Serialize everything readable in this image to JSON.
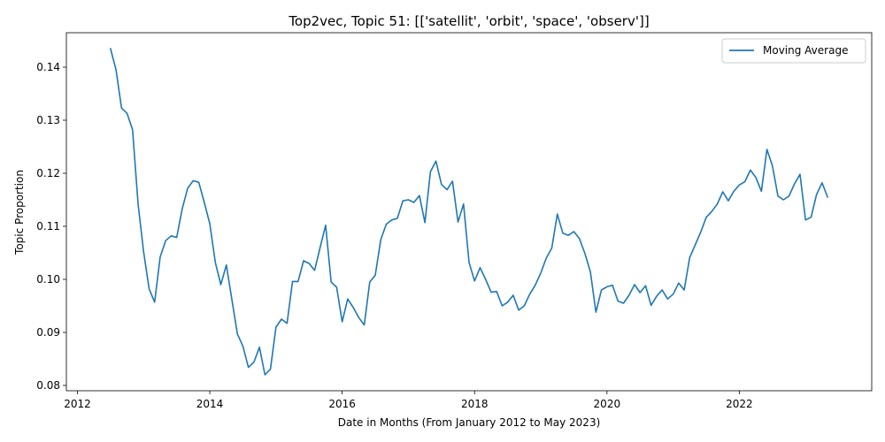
{
  "chart_data": {
    "type": "line",
    "title": "Top2vec, Topic 51: [['satellit', 'orbit', 'space', 'observ']]",
    "xlabel": "Date in Months (From January 2012 to May 2023)",
    "ylabel": "Topic Proportion",
    "xlim": [
      "2011-11",
      "2024-01"
    ],
    "ylim": [
      0.079,
      0.1465
    ],
    "x_ticks": [
      "2012",
      "2014",
      "2016",
      "2018",
      "2020",
      "2022"
    ],
    "y_ticks": [
      "0.08",
      "0.09",
      "0.10",
      "0.11",
      "0.12",
      "0.13",
      "0.14"
    ],
    "grid": false,
    "legend_position": "top-right",
    "line_color": "#1f77b4",
    "series": [
      {
        "name": "Moving Average",
        "x": [
          "2012-07",
          "2012-08",
          "2012-09",
          "2012-10",
          "2012-11",
          "2012-12",
          "2013-01",
          "2013-02",
          "2013-03",
          "2013-04",
          "2013-05",
          "2013-06",
          "2013-07",
          "2013-08",
          "2013-09",
          "2013-10",
          "2013-11",
          "2013-12",
          "2014-01",
          "2014-02",
          "2014-03",
          "2014-04",
          "2014-05",
          "2014-06",
          "2014-07",
          "2014-08",
          "2014-09",
          "2014-10",
          "2014-11",
          "2014-12",
          "2015-01",
          "2015-02",
          "2015-03",
          "2015-04",
          "2015-05",
          "2015-06",
          "2015-07",
          "2015-08",
          "2015-09",
          "2015-10",
          "2015-11",
          "2015-12",
          "2016-01",
          "2016-02",
          "2016-03",
          "2016-04",
          "2016-05",
          "2016-06",
          "2016-07",
          "2016-08",
          "2016-09",
          "2016-10",
          "2016-11",
          "2016-12",
          "2017-01",
          "2017-02",
          "2017-03",
          "2017-04",
          "2017-05",
          "2017-06",
          "2017-07",
          "2017-08",
          "2017-09",
          "2017-10",
          "2017-11",
          "2017-12",
          "2018-01",
          "2018-02",
          "2018-03",
          "2018-04",
          "2018-05",
          "2018-06",
          "2018-07",
          "2018-08",
          "2018-09",
          "2018-10",
          "2018-11",
          "2018-12",
          "2019-01",
          "2019-02",
          "2019-03",
          "2019-04",
          "2019-05",
          "2019-06",
          "2019-07",
          "2019-08",
          "2019-09",
          "2019-10",
          "2019-11",
          "2019-12",
          "2020-01",
          "2020-02",
          "2020-03",
          "2020-04",
          "2020-05",
          "2020-06",
          "2020-07",
          "2020-08",
          "2020-09",
          "2020-10",
          "2020-11",
          "2020-12",
          "2021-01",
          "2021-02",
          "2021-03",
          "2021-04",
          "2021-05",
          "2021-06",
          "2021-07",
          "2021-08",
          "2021-09",
          "2021-10",
          "2021-11",
          "2021-12",
          "2022-01",
          "2022-02",
          "2022-03",
          "2022-04",
          "2022-05",
          "2022-06",
          "2022-07",
          "2022-08",
          "2022-09",
          "2022-10",
          "2022-11",
          "2022-12",
          "2023-01",
          "2023-02",
          "2023-03",
          "2023-04",
          "2023-05"
        ],
        "values": [
          0.1435,
          0.1395,
          0.1323,
          0.1313,
          0.1282,
          0.1142,
          0.1052,
          0.0982,
          0.0957,
          0.1042,
          0.1073,
          0.1082,
          0.1079,
          0.1133,
          0.1172,
          0.1186,
          0.1183,
          0.1145,
          0.1105,
          0.1032,
          0.099,
          0.1027,
          0.0962,
          0.0897,
          0.0874,
          0.0834,
          0.0844,
          0.0872,
          0.082,
          0.0831,
          0.091,
          0.0925,
          0.0917,
          0.0996,
          0.0996,
          0.1035,
          0.103,
          0.1017,
          0.106,
          0.1102,
          0.0995,
          0.0985,
          0.092,
          0.0963,
          0.0947,
          0.0928,
          0.0914,
          0.0995,
          0.1008,
          0.1075,
          0.1104,
          0.1112,
          0.1115,
          0.1148,
          0.115,
          0.1145,
          0.1158,
          0.1107,
          0.1203,
          0.1223,
          0.1179,
          0.1169,
          0.1185,
          0.1108,
          0.1142,
          0.1032,
          0.0997,
          0.1022,
          0.1,
          0.0976,
          0.0977,
          0.095,
          0.0957,
          0.097,
          0.0942,
          0.095,
          0.0972,
          0.0989,
          0.1012,
          0.104,
          0.1059,
          0.1123,
          0.1087,
          0.1083,
          0.109,
          0.1077,
          0.1049,
          0.1014,
          0.0938,
          0.098,
          0.0986,
          0.0989,
          0.0959,
          0.0955,
          0.097,
          0.099,
          0.0975,
          0.0988,
          0.0951,
          0.0968,
          0.098,
          0.0963,
          0.0972,
          0.0993,
          0.098,
          0.1041,
          0.1065,
          0.1089,
          0.1117,
          0.1128,
          0.1142,
          0.1165,
          0.1148,
          0.1166,
          0.1178,
          0.1184,
          0.1206,
          0.1192,
          0.1166,
          0.1245,
          0.1214,
          0.1157,
          0.115,
          0.1157,
          0.118,
          0.1198,
          0.1112,
          0.1117,
          0.116,
          0.1182,
          0.1155
        ]
      }
    ]
  }
}
